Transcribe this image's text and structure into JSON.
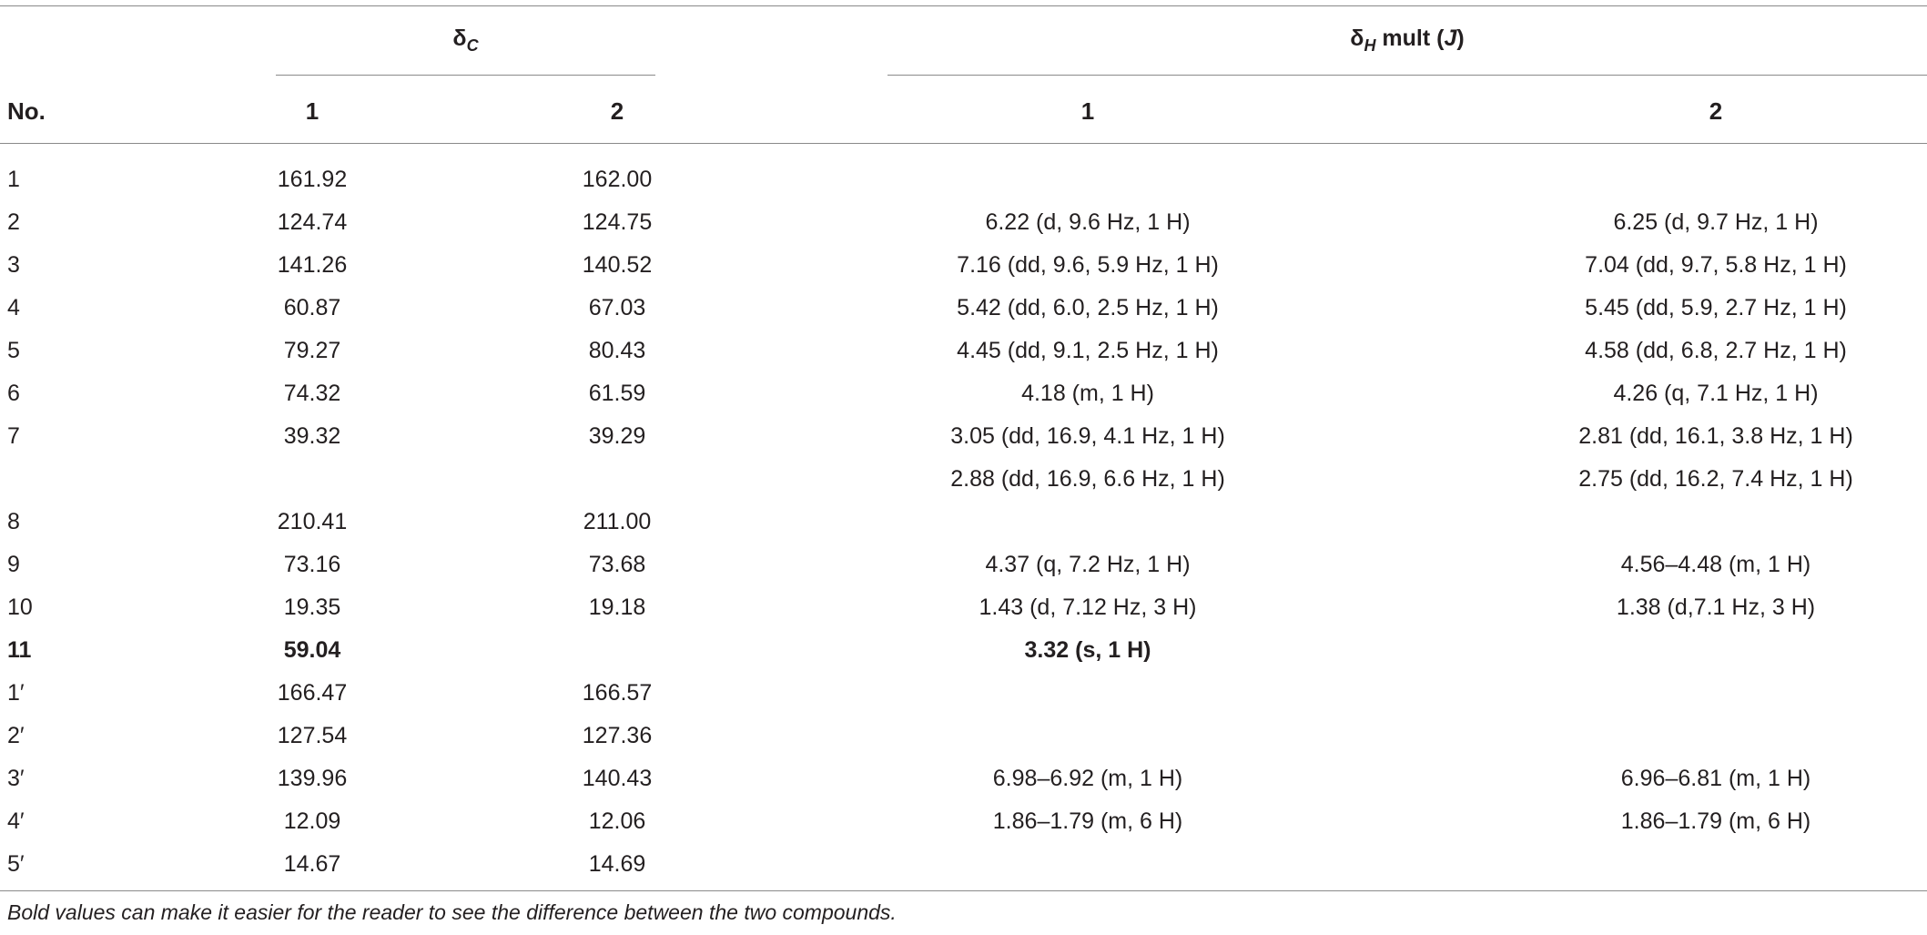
{
  "header": {
    "delta_c": "δ",
    "delta_c_sub": "C",
    "delta_h": "δ",
    "delta_h_sub": "H",
    "delta_h_rest": " mult (",
    "delta_h_j": "J",
    "delta_h_close": ")",
    "col_no": "No.",
    "col_c1": "1",
    "col_c2": "2",
    "col_h1": "1",
    "col_h2": "2"
  },
  "rows": [
    {
      "no": "1",
      "c1": "161.92",
      "c2": "162.00",
      "h1": [
        "",
        ""
      ],
      "h2": [
        "",
        ""
      ]
    },
    {
      "no": "2",
      "c1": "124.74",
      "c2": "124.75",
      "h1": [
        "6.22 (d, 9.6 Hz, 1 H)",
        ""
      ],
      "h2": [
        "6.25 (d, 9.7 Hz, 1 H)",
        ""
      ]
    },
    {
      "no": "3",
      "c1": "141.26",
      "c2": "140.52",
      "h1": [
        "7.16 (dd, 9.6, 5.9 Hz, 1 H)",
        ""
      ],
      "h2": [
        "7.04 (dd, 9.7, 5.8 Hz, 1 H)",
        ""
      ]
    },
    {
      "no": "4",
      "c1": "60.87",
      "c2": "67.03",
      "h1": [
        "5.42 (dd, 6.0, 2.5 Hz, 1 H)",
        ""
      ],
      "h2": [
        "5.45 (dd, 5.9, 2.7 Hz, 1 H)",
        ""
      ]
    },
    {
      "no": "5",
      "c1": "79.27",
      "c2": "80.43",
      "h1": [
        "4.45 (dd, 9.1, 2.5 Hz, 1 H)",
        ""
      ],
      "h2": [
        "4.58 (dd, 6.8, 2.7 Hz, 1 H)",
        ""
      ]
    },
    {
      "no": "6",
      "c1": "74.32",
      "c2": "61.59",
      "h1": [
        "4.18 (m, 1 H)",
        ""
      ],
      "h2": [
        "4.26 (q, 7.1 Hz, 1 H)",
        ""
      ]
    },
    {
      "no": "7",
      "c1": "39.32",
      "c2": "39.29",
      "h1": [
        "3.05 (dd, 16.9, 4.1 Hz, 1 H)",
        "2.88 (dd, 16.9, 6.6 Hz, 1 H)"
      ],
      "h2": [
        "2.81 (dd, 16.1, 3.8 Hz, 1 H)",
        "2.75 (dd, 16.2, 7.4 Hz, 1 H)"
      ]
    },
    {
      "no": "8",
      "c1": "210.41",
      "c2": "211.00",
      "h1": [
        "",
        ""
      ],
      "h2": [
        "",
        ""
      ]
    },
    {
      "no": "9",
      "c1": "73.16",
      "c2": "73.68",
      "h1": [
        "4.37 (q, 7.2 Hz, 1 H)",
        ""
      ],
      "h2": [
        "4.56–4.48 (m, 1 H)",
        ""
      ]
    },
    {
      "no": "10",
      "c1": "19.35",
      "c2": "19.18",
      "h1": [
        "1.43 (d, 7.12 Hz, 3 H)",
        ""
      ],
      "h2": [
        "1.38 (d,7.1 Hz, 3 H)",
        ""
      ]
    },
    {
      "no": "11",
      "c1": "59.04",
      "c2": "",
      "h1": [
        "3.32 (s, 1 H)",
        ""
      ],
      "h2": [
        "",
        ""
      ]
    },
    {
      "no": "1′",
      "c1": "166.47",
      "c2": "166.57",
      "h1": [
        "",
        ""
      ],
      "h2": [
        "",
        ""
      ]
    },
    {
      "no": "2′",
      "c1": "127.54",
      "c2": "127.36",
      "h1": [
        "",
        ""
      ],
      "h2": [
        "",
        ""
      ]
    },
    {
      "no": "3′",
      "c1": "139.96",
      "c2": "140.43",
      "h1": [
        "6.98–6.92 (m, 1 H)",
        ""
      ],
      "h2": [
        "6.96–6.81 (m, 1 H)",
        ""
      ]
    },
    {
      "no": "4′",
      "c1": "12.09",
      "c2": "12.06",
      "h1": [
        "1.86–1.79 (m, 6 H)",
        ""
      ],
      "h2": [
        "1.86–1.79 (m, 6 H)",
        ""
      ]
    },
    {
      "no": "5′",
      "c1": "14.67",
      "c2": "14.69",
      "h1": [
        "",
        ""
      ],
      "h2": [
        "",
        ""
      ]
    }
  ],
  "footnote": "Bold values can make it easier for the reader to see the difference between the two compounds."
}
